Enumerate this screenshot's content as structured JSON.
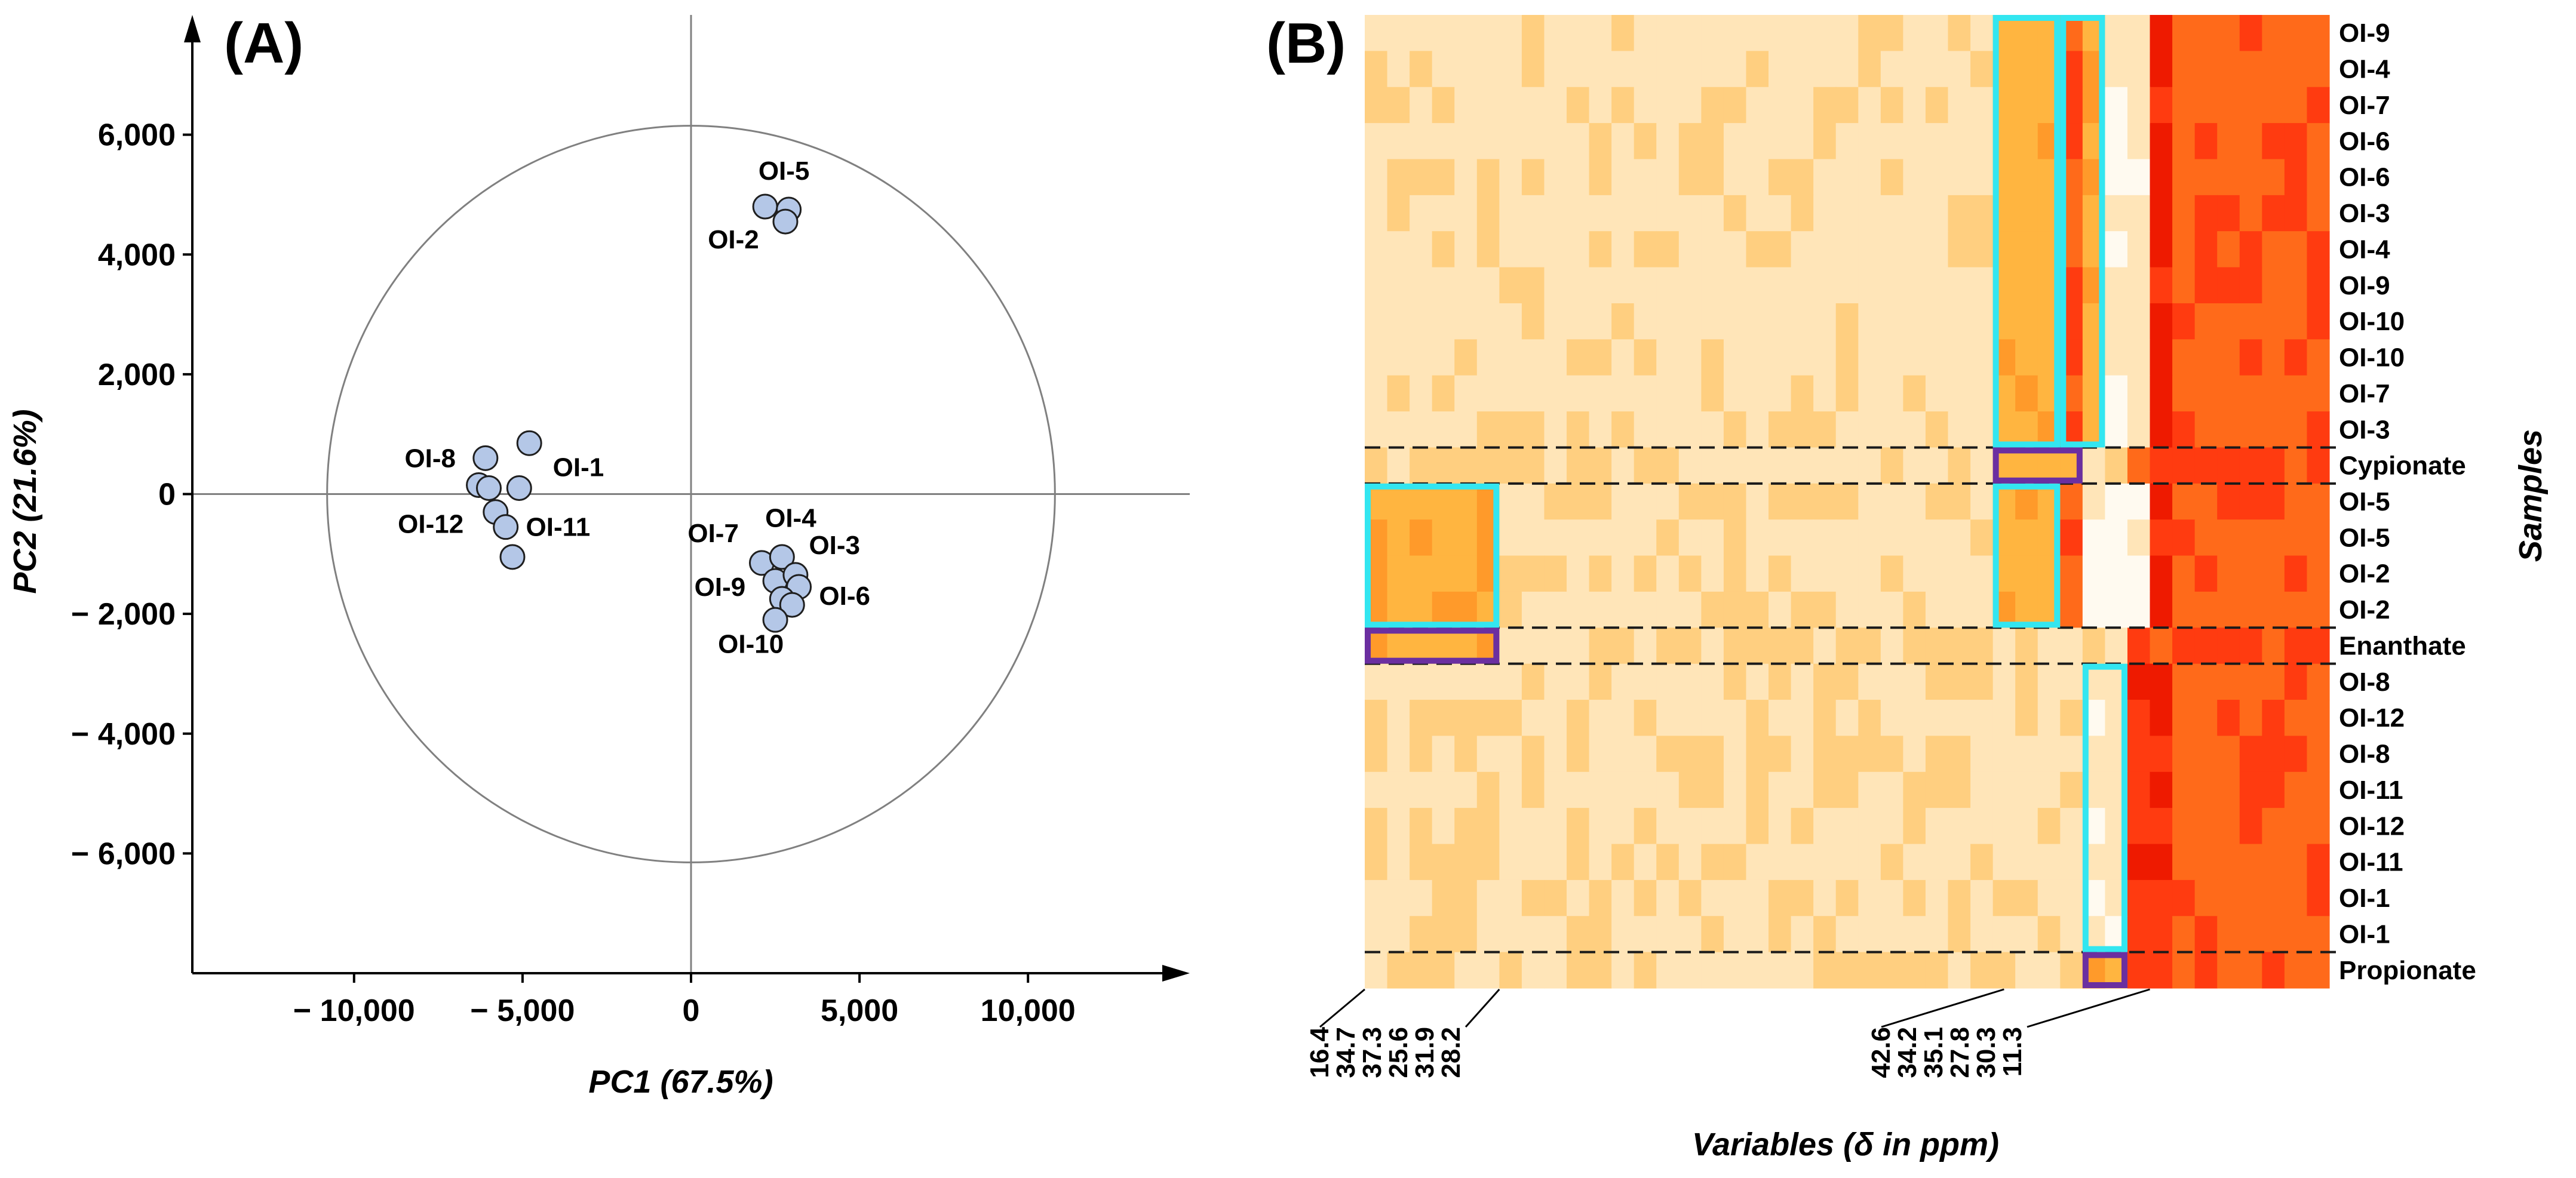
{
  "chart_data": [
    {
      "type": "scatter",
      "panel_label": "(A)",
      "xlabel": "PC1 (67.5%)",
      "ylabel": "PC2 (21.6%)",
      "xlim": [
        -14800,
        14800
      ],
      "ylim": [
        -8000,
        8000
      ],
      "x_ticks": [
        -10000,
        -5000,
        0,
        5000,
        10000
      ],
      "x_tick_labels": [
        "− 10,000",
        "− 5,000",
        "0",
        "5,000",
        "10,000"
      ],
      "y_ticks": [
        6000,
        4000,
        2000,
        0,
        -2000,
        -4000,
        -6000
      ],
      "y_tick_labels": [
        "6,000",
        "4,000",
        "2,000",
        "0",
        "− 2,000",
        "− 4,000",
        "− 6,000"
      ],
      "ellipse": {
        "rx": 10800,
        "ry": 6150
      },
      "point_color": "#b4c7e7",
      "points": [
        {
          "x": -6100,
          "y": 600
        },
        {
          "x": -6300,
          "y": 150
        },
        {
          "x": -6000,
          "y": 100
        },
        {
          "x": -5100,
          "y": 100
        },
        {
          "x": -4800,
          "y": 850
        },
        {
          "x": -5800,
          "y": -300
        },
        {
          "x": -5500,
          "y": -550
        },
        {
          "x": -5300,
          "y": -1050
        },
        {
          "x": 2200,
          "y": 4800
        },
        {
          "x": 2900,
          "y": 4750
        },
        {
          "x": 2800,
          "y": 4550
        },
        {
          "x": 2100,
          "y": -1150
        },
        {
          "x": 2700,
          "y": -1050
        },
        {
          "x": 2500,
          "y": -1450
        },
        {
          "x": 3100,
          "y": -1350
        },
        {
          "x": 3200,
          "y": -1550
        },
        {
          "x": 2700,
          "y": -1750
        },
        {
          "x": 3000,
          "y": -1850
        },
        {
          "x": 2500,
          "y": -2100
        }
      ],
      "annotations": [
        {
          "text": "OI-5",
          "x": 2000,
          "y": 5250
        },
        {
          "text": "OI-2",
          "x": 500,
          "y": 4100
        },
        {
          "text": "OI-8",
          "x": -8500,
          "y": 450
        },
        {
          "text": "OI-1",
          "x": -4100,
          "y": 300
        },
        {
          "text": "OI-12",
          "x": -8700,
          "y": -650
        },
        {
          "text": "OI-11",
          "x": -4900,
          "y": -700
        },
        {
          "text": "OI-7",
          "x": -100,
          "y": -800
        },
        {
          "text": "OI-4",
          "x": 2200,
          "y": -550
        },
        {
          "text": "OI-3",
          "x": 3500,
          "y": -1000
        },
        {
          "text": "OI-9",
          "x": 100,
          "y": -1700
        },
        {
          "text": "OI-6",
          "x": 3800,
          "y": -1850
        },
        {
          "text": "OI-10",
          "x": 800,
          "y": -2650
        }
      ]
    },
    {
      "type": "heatmap",
      "panel_label": "(B)",
      "xlabel": "Variables (δ in ppm)",
      "ylabel": "Samples",
      "colormap": [
        "#fffaf0",
        "#ffe5b8",
        "#ffcf80",
        "#ffb540",
        "#ff9a2a",
        "#ff6a1a",
        "#ff3b10",
        "#ee1a00"
      ],
      "rows": [
        "OI-9",
        "OI-4",
        "OI-7",
        "OI-6",
        "OI-6",
        "OI-3",
        "OI-4",
        "OI-9",
        "OI-10",
        "OI-10",
        "OI-7",
        "OI-3",
        "Cypionate",
        "OI-5",
        "OI-5",
        "OI-2",
        "OI-2",
        "Enanthate",
        "OI-8",
        "OI-12",
        "OI-8",
        "OI-11",
        "OI-12",
        "OI-11",
        "OI-1",
        "OI-1",
        "Propionate"
      ],
      "n_columns": 43,
      "column_tick_labels": [
        {
          "text": "16.4",
          "col": 0
        },
        {
          "text": "34.7",
          "col": 1
        },
        {
          "text": "37.3",
          "col": 2
        },
        {
          "text": "25.6",
          "col": 3
        },
        {
          "text": "31.9",
          "col": 4
        },
        {
          "text": "28.2",
          "col": 5
        },
        {
          "text": "42.6",
          "col": 28
        },
        {
          "text": "34.2",
          "col": 29
        },
        {
          "text": "35.1",
          "col": 30
        },
        {
          "text": "27.8",
          "col": 31
        },
        {
          "text": "30.3",
          "col": 33
        },
        {
          "text": "11.3",
          "col": 34
        }
      ],
      "separator_after_rows": [
        11,
        12,
        16,
        17,
        25
      ],
      "cyan_boxes": [
        {
          "col_start": 28,
          "col_end": 30,
          "row_start": 0,
          "row_end": 11
        },
        {
          "col_start": 31,
          "col_end": 32,
          "row_start": 0,
          "row_end": 11
        },
        {
          "col_start": 0,
          "col_end": 5,
          "row_start": 13,
          "row_end": 16
        },
        {
          "col_start": 28,
          "col_end": 30,
          "row_start": 13,
          "row_end": 16
        },
        {
          "col_start": 32,
          "col_end": 33,
          "row_start": 18,
          "row_end": 25
        }
      ],
      "purple_boxes": [
        {
          "col_start": 28,
          "col_end": 31,
          "row_start": 12,
          "row_end": 12
        },
        {
          "col_start": 0,
          "col_end": 5,
          "row_start": 17,
          "row_end": 17
        },
        {
          "col_start": 32,
          "col_end": 33,
          "row_start": 26,
          "row_end": 26
        }
      ],
      "box_colors": {
        "cyan": "#33e6f0",
        "purple": "#6b2fa0"
      }
    }
  ]
}
